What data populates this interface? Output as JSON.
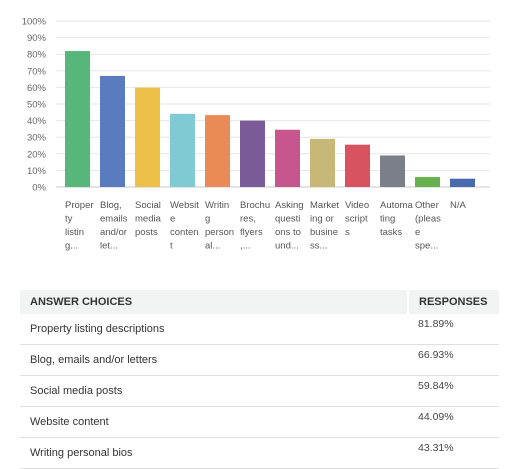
{
  "chart_data": {
    "type": "bar",
    "ylim": [
      0,
      100
    ],
    "yticks": [
      "100%",
      "90%",
      "80%",
      "70%",
      "60%",
      "50%",
      "40%",
      "30%",
      "20%",
      "10%",
      "0%"
    ],
    "categories": [
      [
        "Proper",
        "ty",
        "listin",
        "g..."
      ],
      [
        "Blog,",
        "emails",
        "and/or",
        "let..."
      ],
      [
        "Social",
        "media",
        "posts"
      ],
      [
        "Websit",
        "e",
        "conten",
        "t"
      ],
      [
        "Writin",
        "g",
        "person",
        "al..."
      ],
      [
        "Brochu",
        "res,",
        "flyers",
        ",..."
      ],
      [
        "Asking",
        "questi",
        "ons to",
        "und..."
      ],
      [
        "Market",
        "ing or",
        "busine",
        "ss..."
      ],
      [
        "Video",
        "script",
        "s"
      ],
      [
        "Automa",
        "ting",
        "tasks"
      ],
      [
        "Other",
        "(pleas",
        "e",
        "spe..."
      ],
      [
        "N/A"
      ]
    ],
    "values": [
      81.89,
      66.93,
      59.84,
      44.09,
      43.31,
      40,
      34.5,
      29,
      25.5,
      19,
      6,
      5
    ],
    "colors": [
      "#57b679",
      "#5a7bbd",
      "#edc147",
      "#80cbd3",
      "#e98a57",
      "#7a5b98",
      "#c7568e",
      "#c8b878",
      "#d6535f",
      "#7b7f88",
      "#66b14e",
      "#4a6ab0"
    ],
    "grid": true
  },
  "table": {
    "header_choice": "ANSWER CHOICES",
    "header_responses": "RESPONSES",
    "rows": [
      {
        "choice": "Property listing descriptions",
        "response": "81.89%"
      },
      {
        "choice": "Blog, emails and/or letters",
        "response": "66.93%"
      },
      {
        "choice": "Social media posts",
        "response": "59.84%"
      },
      {
        "choice": "Website content",
        "response": "44.09%"
      },
      {
        "choice": "Writing personal bios",
        "response": "43.31%"
      }
    ]
  }
}
